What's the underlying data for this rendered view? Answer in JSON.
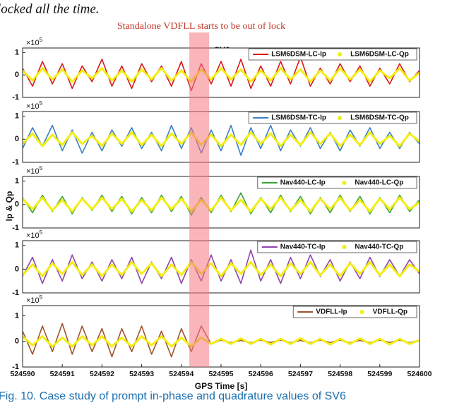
{
  "top_text": "locked all the time.",
  "annotation": "Standalone VDFLL starts to be out of lock",
  "sv_label": "SV6",
  "ylabel": "Ip & Qp",
  "xlabel": "GPS Time [s]",
  "caption": "Fig. 10. Case study of prompt in-phase and quadrature values of SV6",
  "highlight_x": [
    524594.2,
    524594.7
  ],
  "chart_data": [
    {
      "type": "line",
      "xlim": [
        524590,
        524600
      ],
      "ylim": [
        -1,
        1.2
      ],
      "yticks": [
        -1,
        0,
        1
      ],
      "ymultiplier": {
        "base": "×10",
        "exp": "5"
      },
      "x": [
        524590,
        524590.25,
        524590.5,
        524590.75,
        524591,
        524591.25,
        524591.5,
        524591.75,
        524592,
        524592.25,
        524592.5,
        524592.75,
        524593,
        524593.25,
        524593.5,
        524593.75,
        524594,
        524594.25,
        524594.5,
        524594.75,
        524595,
        524595.25,
        524595.5,
        524595.75,
        524596,
        524596.25,
        524596.5,
        524596.75,
        524597,
        524597.25,
        524597.5,
        524597.75,
        524598,
        524598.25,
        524598.5,
        524598.75,
        524599,
        524599.25,
        524599.5,
        524599.75,
        524600
      ],
      "series": [
        {
          "name": "LSM6DSM-LC-Ip",
          "color": "#d7191c",
          "values": [
            0.3,
            -0.5,
            0.6,
            -0.4,
            0.5,
            -0.6,
            0.4,
            -0.3,
            0.7,
            -0.5,
            0.4,
            -0.6,
            0.5,
            -0.3,
            0.4,
            -0.5,
            0.6,
            -0.7,
            0.5,
            -0.4,
            0.6,
            -0.5,
            0.7,
            -0.6,
            0.4,
            -0.5,
            0.6,
            -0.4,
            0.8,
            -0.5,
            0.3,
            -0.4,
            0.5,
            -0.3,
            0.4,
            -0.5,
            0.3,
            -0.4,
            0.5,
            -0.3,
            0.2
          ]
        },
        {
          "name": "LSM6DSM-LC-Qp",
          "color": "#f2ee12",
          "values": [
            0.2,
            -0.25,
            0.3,
            -0.2,
            0.25,
            -0.3,
            0.2,
            -0.15,
            0.3,
            -0.25,
            0.2,
            -0.3,
            0.25,
            -0.2,
            0.3,
            -0.25,
            0.2,
            -0.3,
            0.25,
            -0.2,
            0.3,
            -0.2,
            0.25,
            -0.3,
            0.2,
            -0.25,
            0.3,
            -0.2,
            0.25,
            -0.3,
            0.2,
            -0.25,
            0.3,
            -0.2,
            0.25,
            -0.3,
            0.2,
            -0.15,
            0.3,
            -0.25,
            0.1
          ]
        }
      ]
    },
    {
      "type": "line",
      "xlim": [
        524590,
        524600
      ],
      "ylim": [
        -1,
        1.2
      ],
      "yticks": [
        -1,
        0,
        1
      ],
      "ymultiplier": {
        "base": "×10",
        "exp": "5"
      },
      "x": [
        524590,
        524590.25,
        524590.5,
        524590.75,
        524591,
        524591.25,
        524591.5,
        524591.75,
        524592,
        524592.25,
        524592.5,
        524592.75,
        524593,
        524593.25,
        524593.5,
        524593.75,
        524594,
        524594.25,
        524594.5,
        524594.75,
        524595,
        524595.25,
        524595.5,
        524595.75,
        524596,
        524596.25,
        524596.5,
        524596.75,
        524597,
        524597.25,
        524597.5,
        524597.75,
        524598,
        524598.25,
        524598.5,
        524598.75,
        524599,
        524599.25,
        524599.5,
        524599.75,
        524600
      ],
      "series": [
        {
          "name": "LSM6DSM-TC-Ip",
          "color": "#3b7fc4",
          "values": [
            -0.4,
            0.5,
            -0.3,
            0.6,
            -0.5,
            0.4,
            -0.6,
            0.3,
            -0.5,
            0.4,
            -0.3,
            0.5,
            -0.4,
            0.3,
            -0.5,
            0.6,
            -0.4,
            0.5,
            -0.6,
            0.4,
            -0.5,
            0.6,
            -0.7,
            0.5,
            -0.4,
            0.6,
            -0.5,
            0.4,
            -0.3,
            0.5,
            -0.4,
            0.3,
            -0.5,
            0.4,
            -0.3,
            0.5,
            -0.4,
            0.3,
            -0.4,
            0.3,
            -0.2
          ]
        },
        {
          "name": "LSM6DSM-TC-Qp",
          "color": "#f2ee12",
          "values": [
            -0.2,
            0.25,
            -0.3,
            0.2,
            -0.25,
            0.3,
            -0.2,
            0.15,
            -0.3,
            0.25,
            -0.2,
            0.3,
            -0.25,
            0.2,
            -0.3,
            0.25,
            -0.2,
            0.3,
            -0.25,
            0.2,
            -0.3,
            0.2,
            -0.25,
            0.3,
            -0.2,
            0.25,
            -0.3,
            0.2,
            -0.25,
            0.3,
            -0.2,
            0.25,
            -0.3,
            0.2,
            -0.25,
            0.3,
            -0.2,
            0.15,
            -0.3,
            0.25,
            -0.1
          ]
        }
      ]
    },
    {
      "type": "line",
      "xlim": [
        524590,
        524600
      ],
      "ylim": [
        -1,
        1.2
      ],
      "yticks": [
        -1,
        0,
        1
      ],
      "ymultiplier": {
        "base": "×10",
        "exp": "5"
      },
      "x": [
        524590,
        524590.25,
        524590.5,
        524590.75,
        524591,
        524591.25,
        524591.5,
        524591.75,
        524592,
        524592.25,
        524592.5,
        524592.75,
        524593,
        524593.25,
        524593.5,
        524593.75,
        524594,
        524594.25,
        524594.5,
        524594.75,
        524595,
        524595.25,
        524595.5,
        524595.75,
        524596,
        524596.25,
        524596.5,
        524596.75,
        524597,
        524597.25,
        524597.5,
        524597.75,
        524598,
        524598.25,
        524598.5,
        524598.75,
        524599,
        524599.25,
        524599.5,
        524599.75,
        524600
      ],
      "series": [
        {
          "name": "Nav440-LC-Ip",
          "color": "#3aa33a",
          "values": [
            0.3,
            -0.35,
            0.4,
            -0.3,
            0.35,
            -0.4,
            0.3,
            -0.25,
            0.4,
            -0.3,
            0.35,
            -0.4,
            0.3,
            -0.35,
            0.4,
            -0.3,
            0.35,
            -0.45,
            0.3,
            -0.35,
            0.4,
            -0.3,
            0.5,
            -0.4,
            0.3,
            -0.35,
            0.4,
            -0.3,
            0.35,
            -0.4,
            0.3,
            -0.35,
            0.4,
            -0.3,
            0.35,
            -0.4,
            0.3,
            -0.35,
            0.4,
            -0.3,
            0.2
          ]
        },
        {
          "name": "Nav440-LC-Qp",
          "color": "#f2ee12",
          "values": [
            0.25,
            -0.2,
            0.3,
            -0.25,
            0.2,
            -0.3,
            0.25,
            -0.2,
            0.3,
            -0.2,
            0.25,
            -0.3,
            0.2,
            -0.25,
            0.3,
            -0.2,
            0.25,
            -0.3,
            0.2,
            -0.25,
            0.3,
            -0.25,
            0.2,
            -0.3,
            0.25,
            -0.2,
            0.3,
            -0.25,
            0.2,
            -0.3,
            0.25,
            -0.2,
            0.3,
            -0.25,
            0.2,
            -0.3,
            0.25,
            -0.2,
            0.3,
            -0.2,
            0.1
          ]
        }
      ]
    },
    {
      "type": "line",
      "xlim": [
        524590,
        524600
      ],
      "ylim": [
        -1,
        1.2
      ],
      "yticks": [
        -1,
        0,
        1
      ],
      "ymultiplier": {
        "base": "×10",
        "exp": "5"
      },
      "x": [
        524590,
        524590.25,
        524590.5,
        524590.75,
        524591,
        524591.25,
        524591.5,
        524591.75,
        524592,
        524592.25,
        524592.5,
        524592.75,
        524593,
        524593.25,
        524593.5,
        524593.75,
        524594,
        524594.25,
        524594.5,
        524594.75,
        524595,
        524595.25,
        524595.5,
        524595.75,
        524596,
        524596.25,
        524596.5,
        524596.75,
        524597,
        524597.25,
        524597.5,
        524597.75,
        524598,
        524598.25,
        524598.5,
        524598.75,
        524599,
        524599.25,
        524599.5,
        524599.75,
        524600
      ],
      "series": [
        {
          "name": "Nav440-TC-Ip",
          "color": "#8e44ad",
          "values": [
            -0.3,
            0.5,
            -0.6,
            0.4,
            -0.5,
            0.6,
            -0.4,
            0.3,
            -0.5,
            0.4,
            -0.4,
            0.5,
            -0.6,
            0.3,
            -0.4,
            0.5,
            -0.6,
            0.4,
            -0.5,
            0.6,
            -0.5,
            0.4,
            -0.6,
            0.8,
            -0.5,
            0.4,
            -0.6,
            0.5,
            -0.4,
            0.6,
            -0.3,
            0.4,
            -0.5,
            0.3,
            -0.4,
            0.5,
            -0.3,
            0.4,
            -0.3,
            0.4,
            -0.2
          ]
        },
        {
          "name": "Nav440-TC-Qp",
          "color": "#f2ee12",
          "values": [
            -0.25,
            0.2,
            -0.3,
            0.25,
            -0.2,
            0.3,
            -0.25,
            0.2,
            -0.3,
            0.2,
            -0.25,
            0.3,
            -0.2,
            0.25,
            -0.3,
            0.2,
            -0.25,
            0.3,
            -0.2,
            0.25,
            -0.3,
            0.25,
            -0.2,
            0.3,
            -0.25,
            0.2,
            -0.3,
            0.25,
            -0.2,
            0.3,
            -0.25,
            0.2,
            -0.3,
            0.25,
            -0.2,
            0.3,
            -0.25,
            0.2,
            -0.3,
            0.2,
            -0.1
          ]
        }
      ]
    },
    {
      "type": "line",
      "xlim": [
        524590,
        524600
      ],
      "ylim": [
        -1,
        1.4
      ],
      "yticks": [
        -1,
        0,
        1
      ],
      "ymultiplier": {
        "base": "×10",
        "exp": "5"
      },
      "xticks": [
        524590,
        524591,
        524592,
        524593,
        524594,
        524595,
        524596,
        524597,
        524598,
        524599,
        524600
      ],
      "x": [
        524590,
        524590.25,
        524590.5,
        524590.75,
        524591,
        524591.25,
        524591.5,
        524591.75,
        524592,
        524592.25,
        524592.5,
        524592.75,
        524593,
        524593.25,
        524593.5,
        524593.75,
        524594,
        524594.25,
        524594.5,
        524594.75,
        524595,
        524595.25,
        524595.5,
        524595.75,
        524596,
        524596.25,
        524596.5,
        524596.75,
        524597,
        524597.25,
        524597.5,
        524597.75,
        524598,
        524598.25,
        524598.5,
        524598.75,
        524599,
        524599.25,
        524599.5,
        524599.75,
        524600
      ],
      "series": [
        {
          "name": "VDFLL-Ip",
          "color": "#a0522d",
          "values": [
            0.4,
            -0.5,
            0.6,
            -0.4,
            0.7,
            -0.5,
            0.6,
            -0.4,
            0.5,
            -0.6,
            0.5,
            -0.4,
            0.6,
            -0.5,
            0.4,
            -0.6,
            0.5,
            -0.4,
            0.6,
            -0.1,
            0.05,
            -0.05,
            0.04,
            -0.05,
            0.05,
            -0.04,
            0.05,
            -0.05,
            0.04,
            -0.05,
            0.05,
            -0.04,
            0.05,
            -0.05,
            0.04,
            -0.05,
            0.05,
            -0.04,
            0.05,
            -0.05,
            0.04
          ]
        },
        {
          "name": "VDFLL-Qp",
          "color": "#f2ee12",
          "values": [
            0.2,
            -0.15,
            0.2,
            -0.2,
            0.15,
            -0.2,
            0.2,
            -0.15,
            0.2,
            -0.2,
            0.15,
            -0.2,
            0.2,
            -0.15,
            0.2,
            -0.2,
            0.15,
            -0.2,
            0.15,
            -0.1,
            0.1,
            -0.1,
            0.12,
            -0.1,
            0.1,
            -0.12,
            0.1,
            -0.1,
            0.12,
            -0.1,
            0.1,
            -0.12,
            0.1,
            -0.1,
            0.12,
            -0.1,
            0.1,
            -0.12,
            0.1,
            -0.1,
            0.05
          ]
        }
      ]
    }
  ]
}
